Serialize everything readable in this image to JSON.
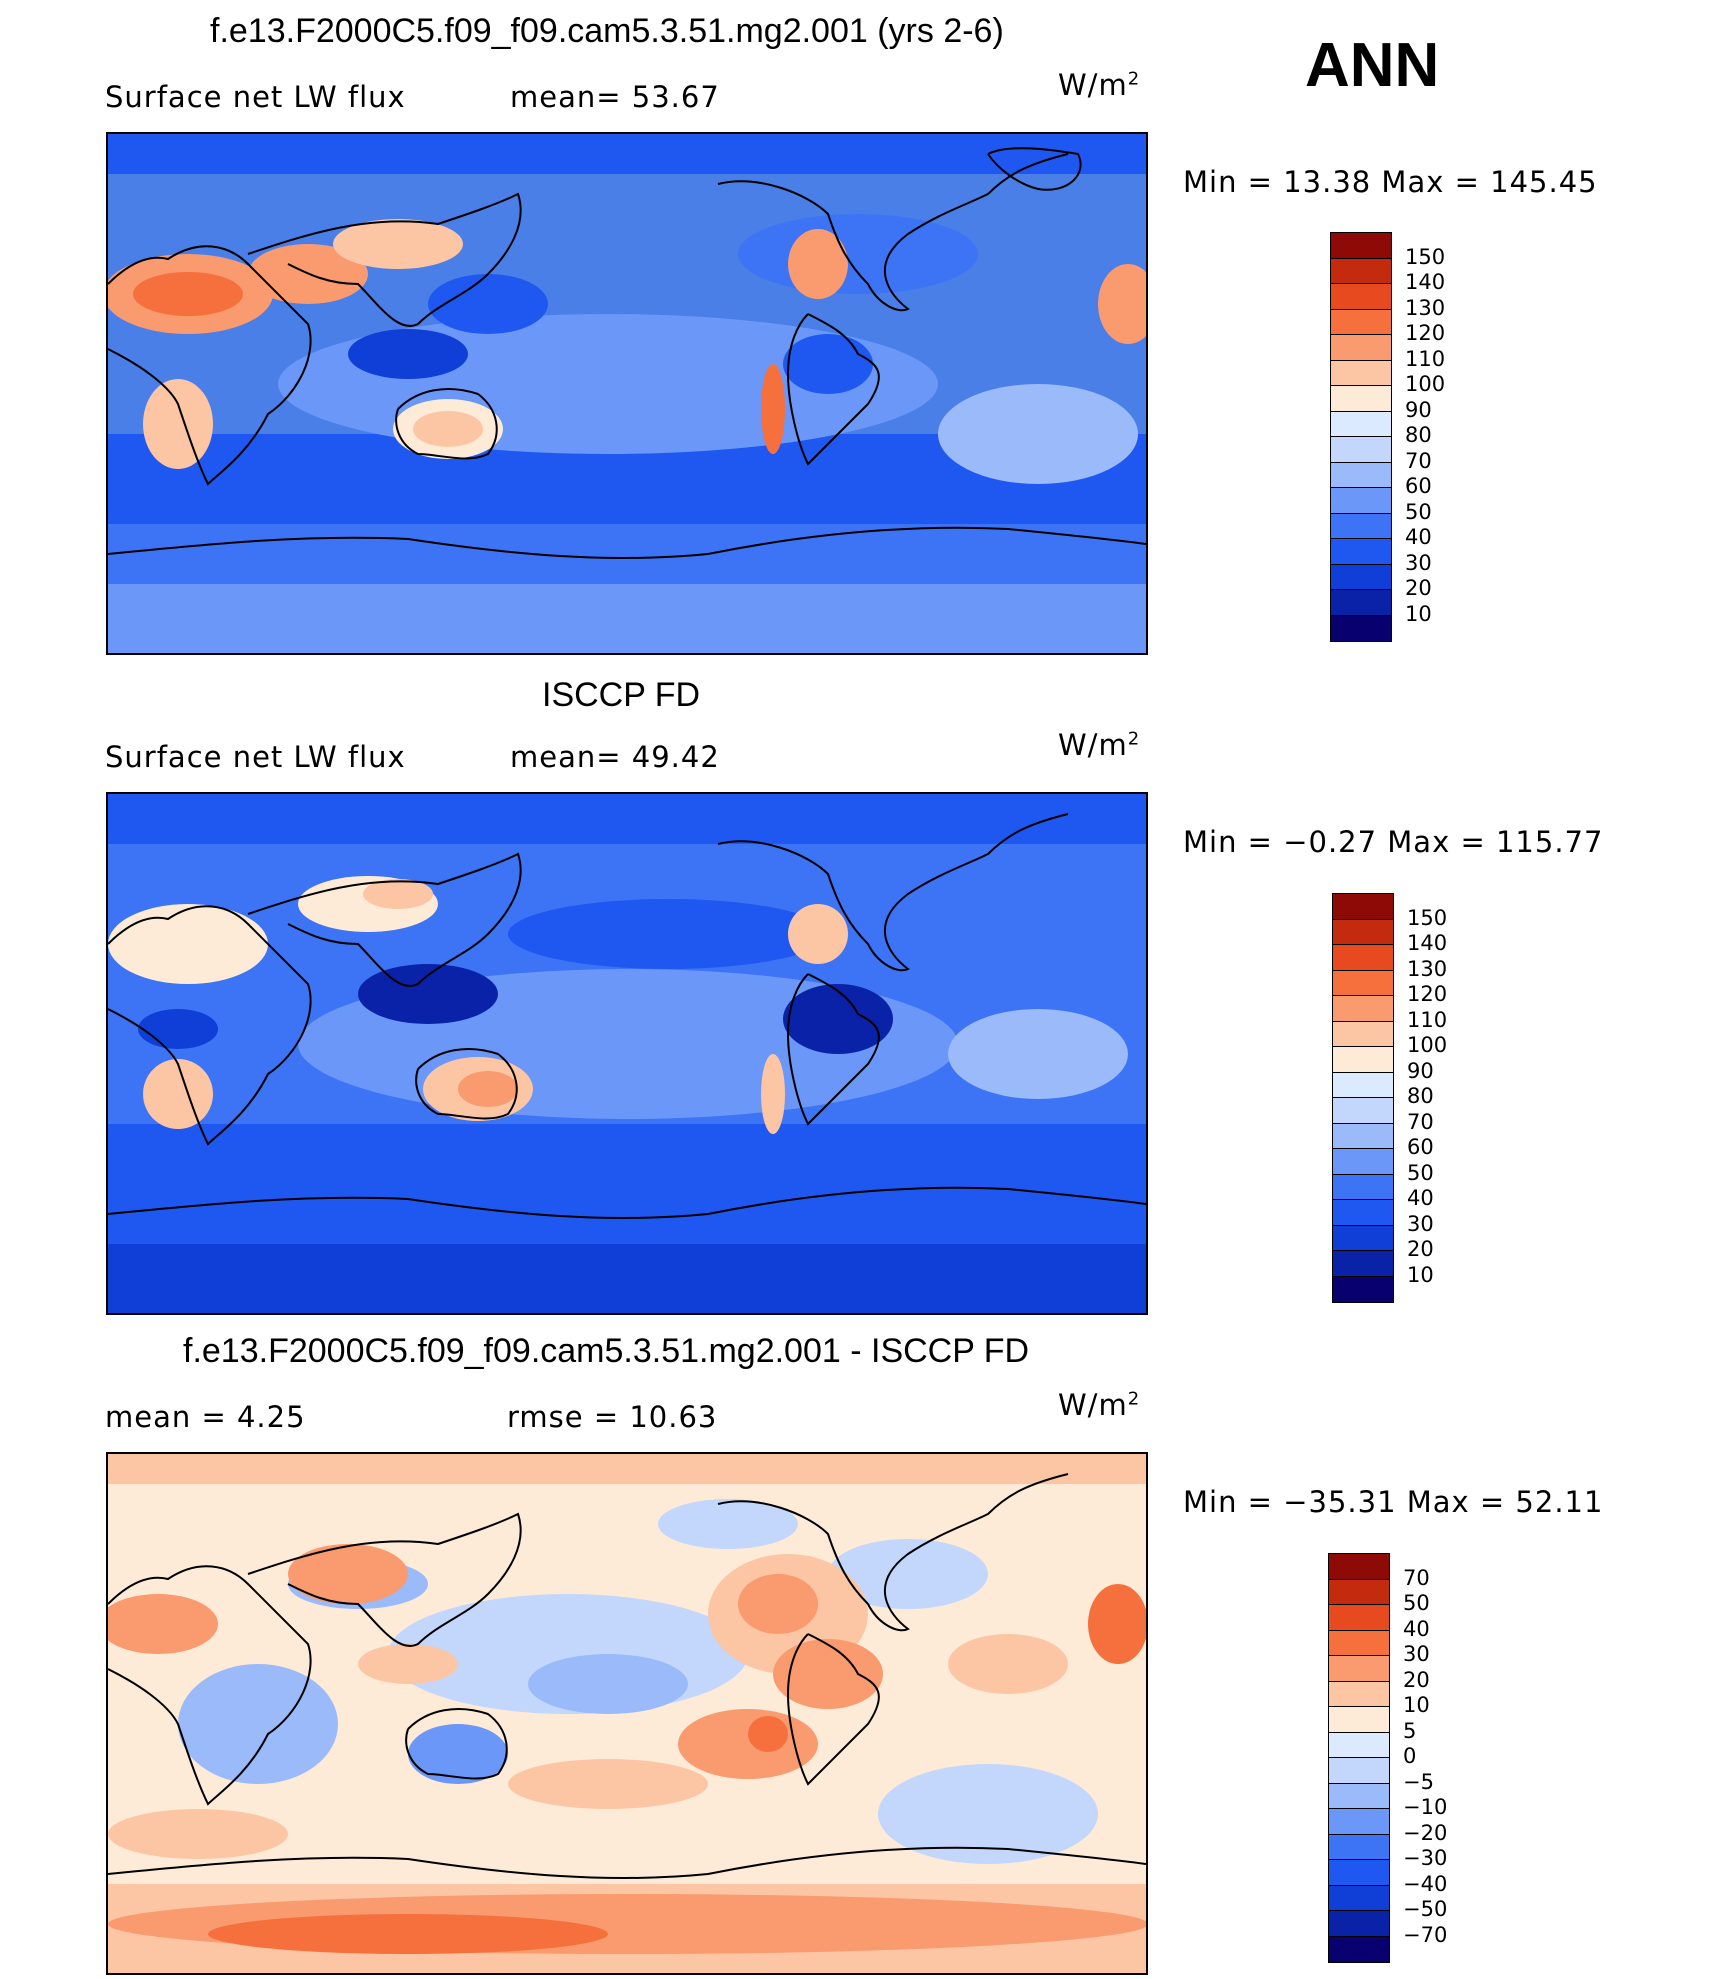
{
  "season": "ANN",
  "panels": [
    {
      "id": "model",
      "title": "f.e13.F2000C5.f09_f09.cam5.3.51.mg2.001 (yrs 2-6)",
      "left_label": "Surface net LW flux",
      "mid_label": "mean=   53.67",
      "unit_base": "W/m",
      "unit_exp": "2",
      "minmax": "Min =   13.38 Max = 145.45",
      "colors": [
        "#08006e",
        "#0a22a8",
        "#0f3fd6",
        "#1f58f0",
        "#3d74f5",
        "#6a97f8",
        "#9bbaf9",
        "#c3d6fc",
        "#dceaff",
        "#fdebd8",
        "#fcc6a4",
        "#f99a6f",
        "#f6703d",
        "#e84a1f",
        "#c42a0e",
        "#8e0a06"
      ],
      "tick_labels": [
        "150",
        "140",
        "130",
        "120",
        "110",
        "100",
        "90",
        "80",
        "70",
        "60",
        "50",
        "40",
        "30",
        "20",
        "10"
      ]
    },
    {
      "id": "obs",
      "title": "ISCCP FD",
      "left_label": "Surface net LW flux",
      "mid_label": "mean=   49.42",
      "unit_base": "W/m",
      "unit_exp": "2",
      "minmax": "Min =   −0.27 Max = 115.77",
      "colors": [
        "#08006e",
        "#0a22a8",
        "#0f3fd6",
        "#1f58f0",
        "#3d74f5",
        "#6a97f8",
        "#9bbaf9",
        "#c3d6fc",
        "#dceaff",
        "#fdebd8",
        "#fcc6a4",
        "#f99a6f",
        "#f6703d",
        "#e84a1f",
        "#c42a0e",
        "#8e0a06"
      ],
      "tick_labels": [
        "150",
        "140",
        "130",
        "120",
        "110",
        "100",
        "90",
        "80",
        "70",
        "60",
        "50",
        "40",
        "30",
        "20",
        "10"
      ]
    },
    {
      "id": "diff",
      "title": "f.e13.F2000C5.f09_f09.cam5.3.51.mg2.001 - ISCCP FD",
      "left_label": "mean =    4.25",
      "mid_label": "rmse =   10.63",
      "unit_base": "W/m",
      "unit_exp": "2",
      "minmax": "Min = −35.31 Max =  52.11",
      "colors": [
        "#08006e",
        "#0a22a8",
        "#0f3fd6",
        "#1f58f0",
        "#3d74f5",
        "#6a97f8",
        "#9bbaf9",
        "#c3d6fc",
        "#dceaff",
        "#fdebd8",
        "#fcc6a4",
        "#f99a6f",
        "#f6703d",
        "#e84a1f",
        "#c42a0e",
        "#8e0a06"
      ],
      "tick_labels": [
        "70",
        "50",
        "40",
        "30",
        "20",
        "10",
        "5",
        "0",
        "−5",
        "−10",
        "−20",
        "−30",
        "−40",
        "−50",
        "−70"
      ]
    }
  ]
}
